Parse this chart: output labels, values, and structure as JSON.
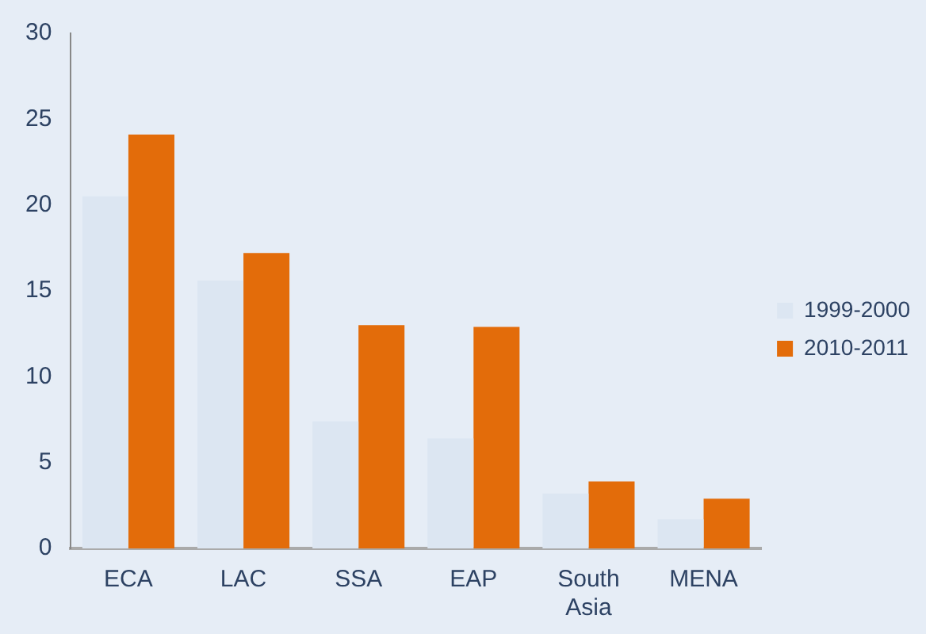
{
  "chart_data": {
    "type": "bar",
    "categories": [
      "ECA",
      "LAC",
      "SSA",
      "EAP",
      "South Asia",
      "MENA"
    ],
    "series": [
      {
        "name": "1999-2000",
        "color": "#dce6f2",
        "values": [
          20.5,
          15.6,
          7.4,
          6.4,
          3.2,
          1.7
        ]
      },
      {
        "name": "2010-2011",
        "color": "#e36c0a",
        "values": [
          24.1,
          17.2,
          13.0,
          12.9,
          3.9,
          2.9
        ]
      }
    ],
    "ylim": [
      0,
      30
    ],
    "yticks": [
      0,
      5,
      10,
      15,
      20,
      25,
      30
    ],
    "grid": false,
    "legend": "right"
  }
}
